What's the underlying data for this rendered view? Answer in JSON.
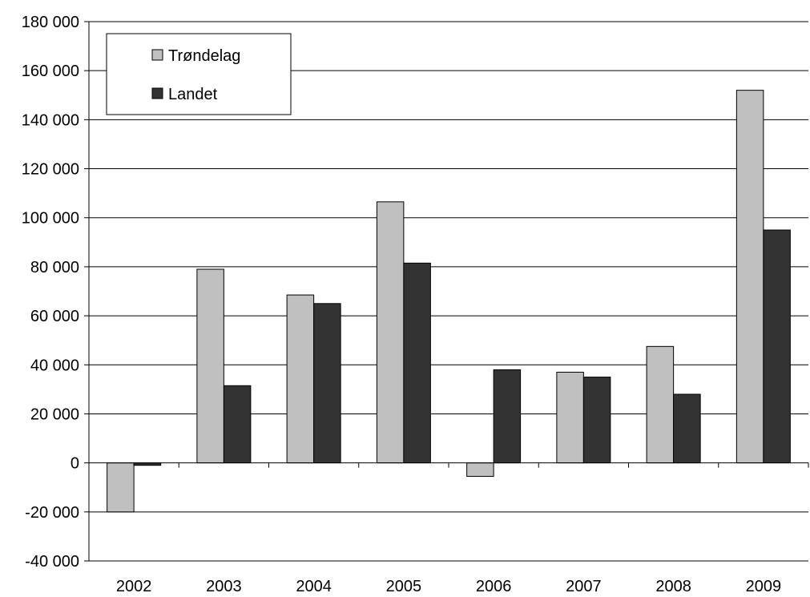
{
  "chart_data": {
    "type": "bar",
    "title": "",
    "xlabel": "",
    "ylabel": "",
    "categories": [
      "2002",
      "2003",
      "2004",
      "2005",
      "2006",
      "2007",
      "2008",
      "2009"
    ],
    "series": [
      {
        "name": "Trøndelag",
        "color": "#c0c0c0",
        "values": [
          -20000,
          79000,
          68500,
          106500,
          -5500,
          37000,
          47500,
          152000
        ]
      },
      {
        "name": "Landet",
        "color": "#333333",
        "values": [
          -1000,
          31500,
          65000,
          81500,
          38000,
          35000,
          28000,
          95000
        ]
      }
    ],
    "ylim": [
      -40000,
      180000
    ],
    "yticks": [
      -40000,
      -20000,
      0,
      20000,
      40000,
      60000,
      80000,
      100000,
      120000,
      140000,
      160000,
      180000
    ],
    "ytick_labels": [
      "-40 000",
      "-20 000",
      "0",
      "20 000",
      "40 000",
      "60 000",
      "80 000",
      "100 000",
      "120 000",
      "140 000",
      "160 000",
      "180 000"
    ],
    "grid": true,
    "legend": {
      "placement": "top-left",
      "entries": [
        "Trøndelag",
        "Landet"
      ]
    }
  }
}
